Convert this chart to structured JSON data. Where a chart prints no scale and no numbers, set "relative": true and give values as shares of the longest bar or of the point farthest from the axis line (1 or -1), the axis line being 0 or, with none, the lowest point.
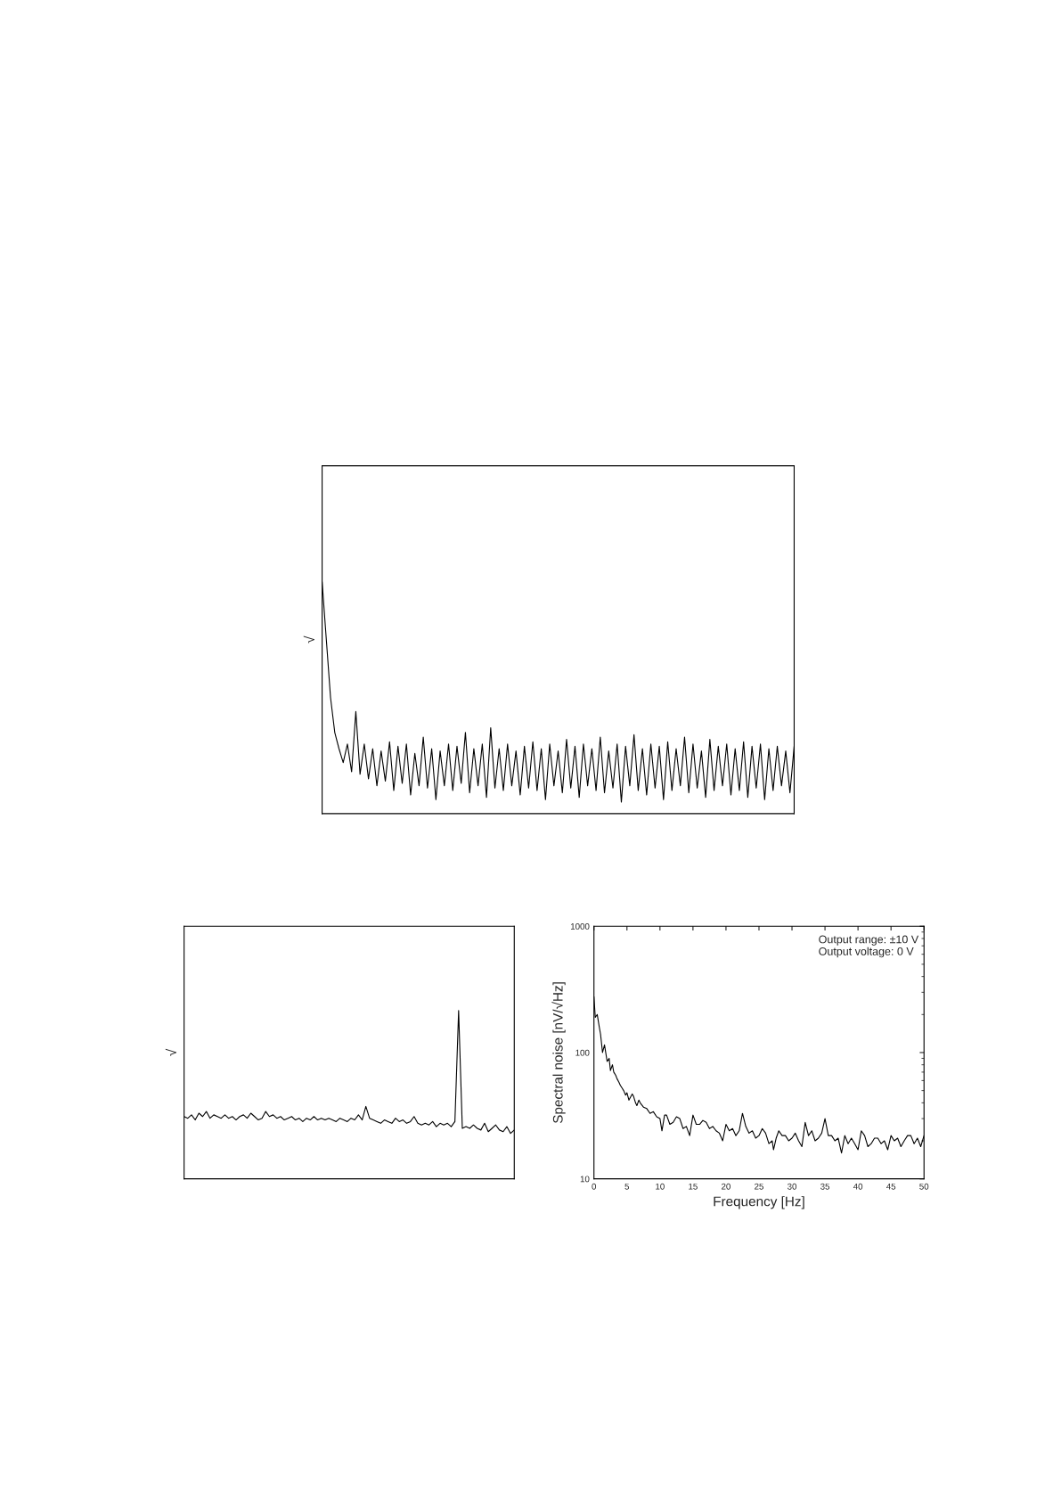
{
  "chart_data": [
    {
      "type": "line",
      "relative": true,
      "ylabel": "√",
      "categories": [
        null,
        null,
        null,
        null,
        null,
        null,
        null,
        null,
        null,
        null,
        null,
        null,
        null,
        null,
        null,
        null,
        null,
        null,
        null,
        null,
        null,
        null,
        null,
        null,
        null,
        null,
        null,
        null,
        null,
        null,
        null,
        null,
        null,
        null,
        null,
        null,
        null,
        null,
        null,
        null,
        null,
        null,
        null,
        null,
        null,
        null,
        null,
        null,
        null,
        null,
        null,
        null,
        null,
        null,
        null,
        null,
        null,
        null,
        null,
        null,
        null,
        null,
        null,
        null,
        null,
        null,
        null,
        null,
        null,
        null,
        null,
        null,
        null,
        null,
        null,
        null,
        null,
        null,
        null,
        null,
        null,
        null,
        null,
        null,
        null,
        null,
        null,
        null,
        null,
        null,
        null,
        null,
        null,
        null,
        null,
        null,
        null,
        null,
        null,
        null,
        null,
        null,
        null,
        null,
        null,
        null,
        null,
        null,
        null,
        null,
        null,
        null,
        null
      ],
      "series": [
        {
          "color": "#000000",
          "values": [
            1.0,
            0.75,
            0.5,
            0.35,
            0.28,
            0.22,
            0.3,
            0.18,
            0.44,
            0.17,
            0.3,
            0.15,
            0.28,
            0.12,
            0.27,
            0.14,
            0.31,
            0.1,
            0.29,
            0.13,
            0.3,
            0.08,
            0.26,
            0.12,
            0.33,
            0.11,
            0.28,
            0.06,
            0.27,
            0.12,
            0.3,
            0.1,
            0.29,
            0.13,
            0.35,
            0.09,
            0.28,
            0.12,
            0.3,
            0.07,
            0.37,
            0.11,
            0.28,
            0.1,
            0.3,
            0.12,
            0.27,
            0.08,
            0.29,
            0.11,
            0.31,
            0.1,
            0.28,
            0.06,
            0.3,
            0.12,
            0.27,
            0.09,
            0.32,
            0.11,
            0.29,
            0.07,
            0.3,
            0.12,
            0.28,
            0.1,
            0.33,
            0.09,
            0.27,
            0.11,
            0.3,
            0.05,
            0.29,
            0.12,
            0.34,
            0.1,
            0.28,
            0.08,
            0.3,
            0.11,
            0.29,
            0.06,
            0.31,
            0.1,
            0.28,
            0.12,
            0.33,
            0.09,
            0.3,
            0.11,
            0.27,
            0.07,
            0.32,
            0.1,
            0.29,
            0.12,
            0.3,
            0.08,
            0.28,
            0.1,
            0.31,
            0.07,
            0.29,
            0.11,
            0.3,
            0.06,
            0.28,
            0.1,
            0.29,
            0.12,
            0.27,
            0.09,
            0.29
          ]
        }
      ]
    },
    {
      "type": "line",
      "relative": true,
      "ylabel": "√",
      "categories": [
        null,
        null,
        null,
        null,
        null,
        null,
        null,
        null,
        null,
        null,
        null,
        null,
        null,
        null,
        null,
        null,
        null,
        null,
        null,
        null,
        null,
        null,
        null,
        null,
        null,
        null,
        null,
        null,
        null,
        null,
        null,
        null,
        null,
        null,
        null,
        null,
        null,
        null,
        null,
        null,
        null,
        null,
        null,
        null,
        null,
        null,
        null,
        null,
        null,
        null,
        null,
        null,
        null,
        null,
        null,
        null,
        null,
        null,
        null,
        null,
        null,
        null,
        null,
        null,
        null,
        null,
        null,
        null,
        null,
        null,
        null,
        null,
        null,
        null,
        null,
        null,
        null,
        null,
        null,
        null,
        null,
        null,
        null,
        null,
        null,
        null,
        null,
        null,
        null,
        null
      ],
      "series": [
        {
          "color": "#000000",
          "values": [
            0.37,
            0.36,
            0.38,
            0.35,
            0.39,
            0.37,
            0.4,
            0.36,
            0.38,
            0.37,
            0.36,
            0.38,
            0.36,
            0.37,
            0.35,
            0.37,
            0.38,
            0.36,
            0.39,
            0.37,
            0.35,
            0.36,
            0.4,
            0.37,
            0.38,
            0.36,
            0.37,
            0.35,
            0.36,
            0.37,
            0.35,
            0.36,
            0.34,
            0.36,
            0.35,
            0.37,
            0.35,
            0.36,
            0.35,
            0.36,
            0.35,
            0.34,
            0.36,
            0.35,
            0.34,
            0.36,
            0.35,
            0.38,
            0.35,
            0.43,
            0.36,
            0.35,
            0.34,
            0.33,
            0.35,
            0.34,
            0.33,
            0.36,
            0.34,
            0.35,
            0.33,
            0.34,
            0.37,
            0.33,
            0.32,
            0.33,
            0.32,
            0.34,
            0.31,
            0.33,
            0.32,
            0.33,
            0.31,
            0.34,
            1.0,
            0.3,
            0.31,
            0.3,
            0.32,
            0.3,
            0.29,
            0.33,
            0.28,
            0.3,
            0.32,
            0.29,
            0.28,
            0.31,
            0.27,
            0.29
          ]
        }
      ]
    },
    {
      "type": "line",
      "log": "y",
      "xlabel": "Frequency [Hz]",
      "ylabel": "Spectral noise [nV/√Hz]",
      "xlim": [
        0,
        50
      ],
      "xticks": [
        0,
        5,
        10,
        15,
        20,
        25,
        30,
        35,
        40,
        45,
        50
      ],
      "ylim": [
        10,
        1000
      ],
      "yticks": [
        10,
        100,
        1000
      ],
      "annotations": [
        "Output range: ±10 V",
        "Output voltage: 0 V"
      ],
      "x": [
        0,
        0.2,
        0.5,
        0.8,
        1,
        1.3,
        1.6,
        2,
        2.3,
        2.5,
        2.8,
        3,
        3.3,
        3.5,
        3.8,
        4,
        4.3,
        4.5,
        4.8,
        5,
        5.3,
        5.5,
        5.8,
        6,
        6.3,
        6.5,
        6.8,
        7,
        7.5,
        8,
        8.5,
        9,
        9.5,
        10,
        10.3,
        10.7,
        11,
        11.5,
        12,
        12.5,
        13,
        13.5,
        14,
        14.5,
        15,
        15.5,
        16,
        16.5,
        17,
        17.5,
        18,
        18.5,
        19,
        19.5,
        20,
        20.5,
        21,
        21.5,
        22,
        22.5,
        23,
        23.5,
        24,
        24.5,
        25,
        25.5,
        26,
        26.5,
        27,
        27.2,
        27.6,
        28,
        28.5,
        29,
        29.5,
        30,
        30.5,
        31,
        31.5,
        32,
        32.5,
        33,
        33.5,
        34,
        34.5,
        35,
        35.5,
        36,
        36.5,
        37,
        37.5,
        38,
        38.5,
        39,
        39.5,
        40,
        40.5,
        41,
        41.5,
        42,
        42.5,
        43,
        43.5,
        44,
        44.5,
        45,
        45.5,
        46,
        46.5,
        47,
        47.5,
        48,
        48.5,
        49,
        49.5,
        50
      ],
      "series": [
        {
          "color": "#000000",
          "values": [
            277,
            190,
            200,
            160,
            140,
            100,
            115,
            85,
            90,
            72,
            80,
            70,
            66,
            62,
            58,
            55,
            52,
            50,
            46,
            48,
            42,
            44,
            47,
            45,
            40,
            38,
            42,
            40,
            37,
            36,
            33,
            34,
            31,
            30,
            24,
            32,
            32,
            27,
            28,
            31,
            30,
            25,
            26,
            22,
            32,
            27,
            27,
            29,
            28,
            25,
            26,
            24,
            23,
            20,
            27,
            24,
            25,
            22,
            24,
            33,
            26,
            23,
            24,
            21,
            22,
            25,
            23,
            19,
            20,
            17,
            21,
            24,
            22,
            22,
            20,
            21,
            23,
            20,
            18,
            28,
            22,
            24,
            20,
            21,
            23,
            30,
            22,
            22,
            20,
            21,
            16,
            22,
            19,
            21,
            19,
            17,
            24,
            22,
            18,
            19,
            21,
            21,
            19,
            20,
            17,
            22,
            20,
            21,
            18,
            20,
            22,
            22,
            19,
            21,
            18,
            22
          ]
        }
      ]
    }
  ]
}
